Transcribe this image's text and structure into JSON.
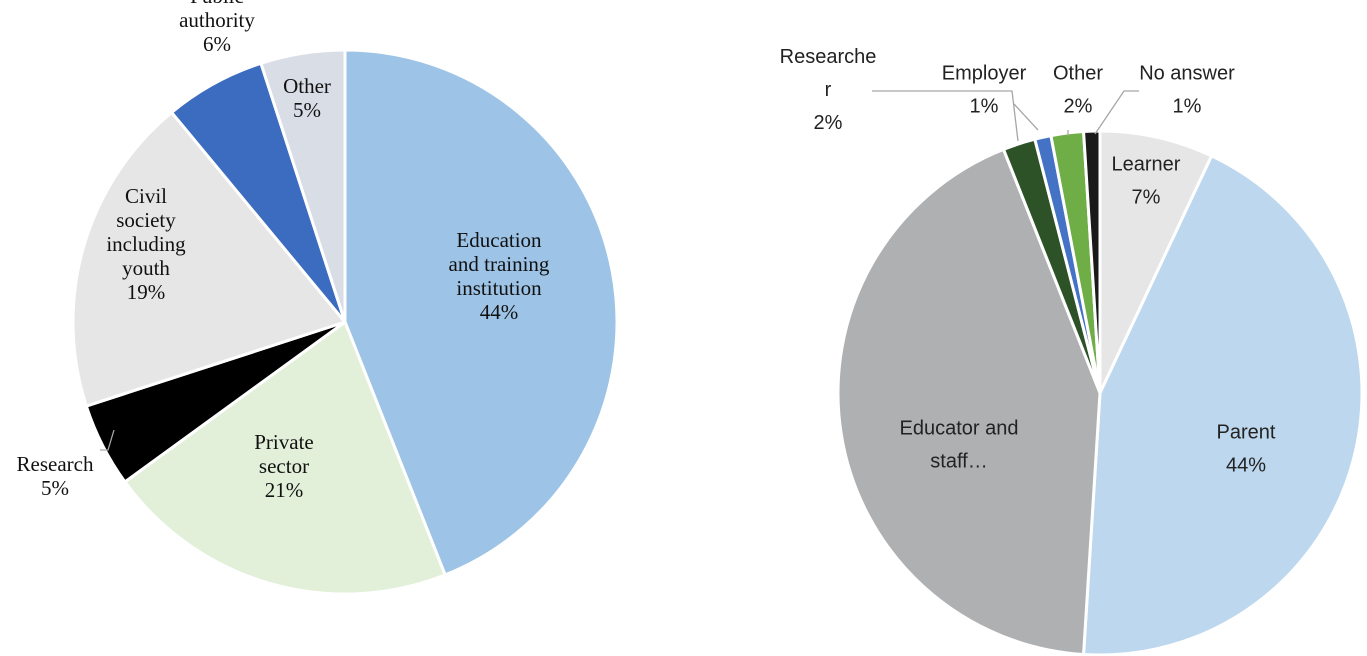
{
  "chart_data": [
    {
      "type": "pie",
      "title": "",
      "start_angle_deg": 0,
      "slices": [
        {
          "label": [
            "Education",
            "and training",
            "institution"
          ],
          "value": 44,
          "value_text": "44%",
          "color": "#9dc3e6"
        },
        {
          "label": [
            "Private",
            "sector"
          ],
          "value": 21,
          "value_text": "21%",
          "color": "#e2efd9"
        },
        {
          "label": [
            "Research"
          ],
          "value": 5,
          "value_text": "5%",
          "color": "#000000"
        },
        {
          "label": [
            "Civil",
            "society",
            "including",
            "youth"
          ],
          "value": 19,
          "value_text": "19%",
          "color": "#e7e6e6"
        },
        {
          "label": [
            "Public",
            "authority"
          ],
          "value": 6,
          "value_text": "6%",
          "color": "#3b6cc0"
        },
        {
          "label": [
            "Other"
          ],
          "value": 5,
          "value_text": "5%",
          "color": "#d9dde6"
        }
      ]
    },
    {
      "type": "pie",
      "title": "",
      "start_angle_deg": 0,
      "slices": [
        {
          "label": [
            "Learner"
          ],
          "value": 7,
          "value_text": "7%",
          "color": "#e7e6e6"
        },
        {
          "label": [
            "Parent"
          ],
          "value": 44,
          "value_text": "44%",
          "color": "#bdd7ee"
        },
        {
          "label": [
            "Educator and",
            "staff…"
          ],
          "value": 43,
          "value_text": "",
          "color": "#afb0b2"
        },
        {
          "label": [
            "Researche",
            "r"
          ],
          "value": 2,
          "value_text": "2%",
          "color": "#2e5227"
        },
        {
          "label": [
            "Employer"
          ],
          "value": 1,
          "value_text": "1%",
          "color": "#4472c4"
        },
        {
          "label": [
            "Other"
          ],
          "value": 2,
          "value_text": "2%",
          "color": "#6fad47"
        },
        {
          "label": [
            "No answer"
          ],
          "value": 1,
          "value_text": "1%",
          "color": "#1a1a1a"
        }
      ]
    }
  ]
}
